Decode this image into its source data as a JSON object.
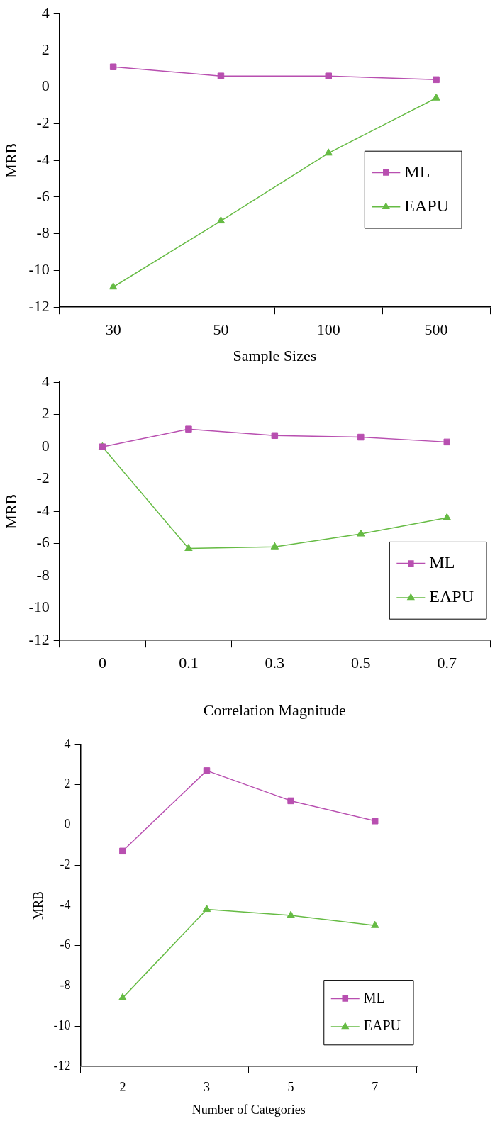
{
  "chart_data": [
    {
      "type": "line",
      "xlabel": "Sample Sizes",
      "ylabel": "MRB",
      "categories": [
        "30",
        "50",
        "100",
        "500"
      ],
      "ylim": [
        -12,
        4
      ],
      "yticks": [
        -12,
        -10,
        -8,
        -6,
        -4,
        -2,
        0,
        2,
        4
      ],
      "grid": false,
      "legend": "right",
      "series": [
        {
          "name": "ML",
          "color": "#b84fb0",
          "marker": "square",
          "values": [
            1.1,
            0.6,
            0.6,
            0.4
          ]
        },
        {
          "name": "EAPU",
          "color": "#66bb44",
          "marker": "triangle",
          "values": [
            -10.9,
            -7.3,
            -3.6,
            -0.6
          ]
        }
      ]
    },
    {
      "type": "line",
      "xlabel": "Correlation Magnitude",
      "ylabel": "MRB",
      "categories": [
        "0",
        "0.1",
        "0.3",
        "0.5",
        "0.7"
      ],
      "ylim": [
        -12,
        4
      ],
      "yticks": [
        -12,
        -10,
        -8,
        -6,
        -4,
        -2,
        0,
        2,
        4
      ],
      "grid": false,
      "legend": "bottom right",
      "series": [
        {
          "name": "ML",
          "color": "#b84fb0",
          "marker": "square",
          "values": [
            0,
            1.1,
            0.7,
            0.6,
            0.3
          ]
        },
        {
          "name": "EAPU",
          "color": "#66bb44",
          "marker": "triangle",
          "values": [
            0,
            -6.3,
            -6.2,
            -5.4,
            -4.4
          ]
        }
      ]
    },
    {
      "type": "line",
      "xlabel": "Number of Categories",
      "ylabel": "MRB",
      "categories": [
        "2",
        "3",
        "5",
        "7"
      ],
      "ylim": [
        -12,
        4
      ],
      "yticks": [
        -12,
        -10,
        -8,
        -6,
        -4,
        -2,
        0,
        2,
        4
      ],
      "grid": false,
      "legend": "bottom right",
      "series": [
        {
          "name": "ML",
          "color": "#b84fb0",
          "marker": "square",
          "values": [
            -1.3,
            2.7,
            1.2,
            0.2
          ]
        },
        {
          "name": "EAPU",
          "color": "#66bb44",
          "marker": "triangle",
          "values": [
            -8.6,
            -4.2,
            -4.5,
            -5.0
          ]
        }
      ]
    }
  ]
}
